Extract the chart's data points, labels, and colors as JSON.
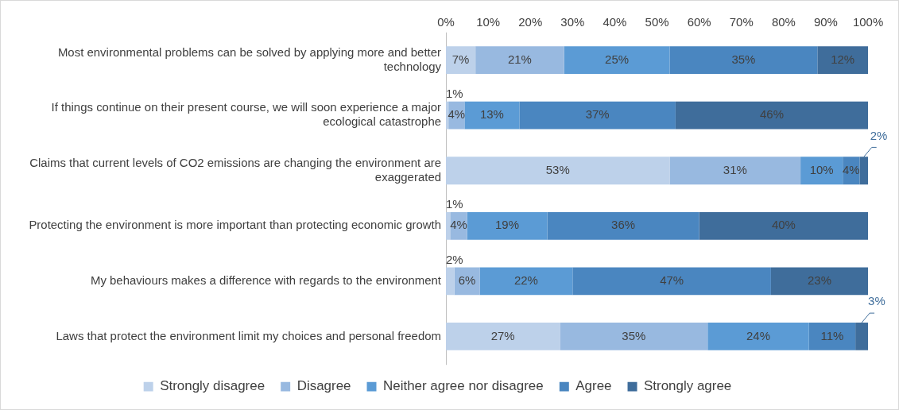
{
  "chart_data": {
    "type": "bar",
    "orientation": "horizontal",
    "stacked": true,
    "categories": [
      "Most environmental problems can be solved by applying more and better technology",
      "If things continue on their present course, we will soon experience a major ecological catastrophe",
      "Claims that current levels of CO2 emissions are changing the environment are exaggerated",
      "Protecting the environment is more important than protecting economic growth",
      "My behaviours makes a difference with regards to the environment",
      "Laws that protect the environment limit my choices and personal freedom"
    ],
    "series": [
      {
        "name": "Strongly disagree",
        "color": "#bdd1ea",
        "values": [
          7,
          0.6,
          53,
          1,
          2,
          27
        ],
        "value_labels": [
          "7%",
          "1%",
          "53%",
          "1%",
          "2%",
          "27%"
        ]
      },
      {
        "name": "Disagree",
        "color": "#98b9e0",
        "values": [
          21,
          3.8,
          31,
          4,
          6,
          35
        ],
        "value_labels": [
          "21%",
          "4%",
          "31%",
          "4%",
          "6%",
          "35%"
        ]
      },
      {
        "name": "Neither agree nor disagree",
        "color": "#5b9bd5",
        "values": [
          25,
          13,
          10,
          19,
          22,
          24
        ],
        "value_labels": [
          "25%",
          "13%",
          "10%",
          "19%",
          "22%",
          "24%"
        ]
      },
      {
        "name": "Agree",
        "color": "#4a86c0",
        "values": [
          35,
          37,
          4,
          36,
          47,
          11
        ],
        "value_labels": [
          "35%",
          "37%",
          "4%",
          "36%",
          "47%",
          "11%"
        ]
      },
      {
        "name": "Strongly agree",
        "color": "#3f6d9b",
        "values": [
          12,
          45.6,
          2,
          40,
          23,
          3
        ],
        "value_labels": [
          "12%",
          "46%",
          "2%",
          "40%",
          "23%",
          "3%"
        ]
      }
    ],
    "xlim": [
      0,
      100
    ],
    "xticks": [
      {
        "value": 0,
        "label": "0%"
      },
      {
        "value": 10,
        "label": "10%"
      },
      {
        "value": 20,
        "label": "20%"
      },
      {
        "value": 30,
        "label": "30%"
      },
      {
        "value": 40,
        "label": "40%"
      },
      {
        "value": 50,
        "label": "50%"
      },
      {
        "value": 60,
        "label": "60%"
      },
      {
        "value": 70,
        "label": "70%"
      },
      {
        "value": 80,
        "label": "80%"
      },
      {
        "value": 90,
        "label": "90%"
      },
      {
        "value": 100,
        "label": "100%"
      }
    ],
    "legend": "bottom",
    "grid": false
  }
}
